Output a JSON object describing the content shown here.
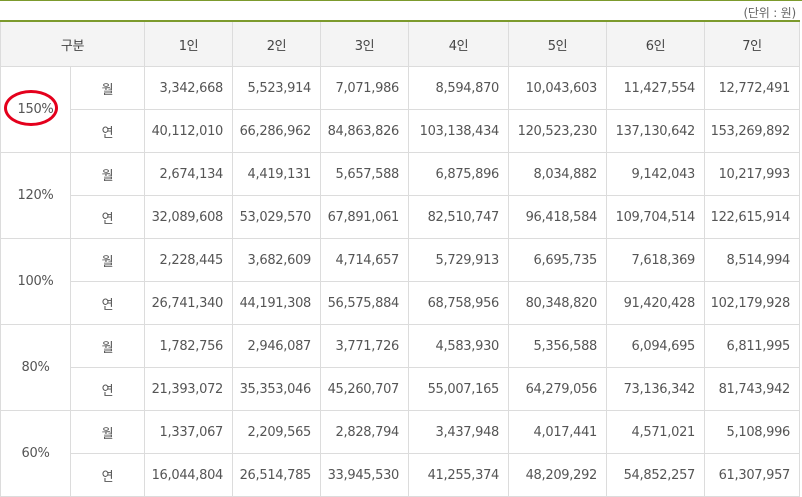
{
  "unit_label": "(단위 : 원)",
  "header": [
    "구분",
    "1인",
    "2인",
    "3인",
    "4인",
    "5인",
    "6인",
    "7인"
  ],
  "groups": [
    {
      "pct": "150%",
      "rows": [
        {
          "kind": "월",
          "values": [
            "3,342,668",
            "5,523,914",
            "7,071,986",
            "8,594,870",
            "10,043,603",
            "11,427,554",
            "12,772,491"
          ]
        },
        {
          "kind": "연",
          "values": [
            "40,112,010",
            "66,286,962",
            "84,863,826",
            "103,138,434",
            "120,523,230",
            "137,130,642",
            "153,269,892"
          ]
        }
      ]
    },
    {
      "pct": "120%",
      "rows": [
        {
          "kind": "월",
          "values": [
            "2,674,134",
            "4,419,131",
            "5,657,588",
            "6,875,896",
            "8,034,882",
            "9,142,043",
            "10,217,993"
          ]
        },
        {
          "kind": "연",
          "values": [
            "32,089,608",
            "53,029,570",
            "67,891,061",
            "82,510,747",
            "96,418,584",
            "109,704,514",
            "122,615,914"
          ]
        }
      ]
    },
    {
      "pct": "100%",
      "rows": [
        {
          "kind": "월",
          "values": [
            "2,228,445",
            "3,682,609",
            "4,714,657",
            "5,729,913",
            "6,695,735",
            "7,618,369",
            "8,514,994"
          ]
        },
        {
          "kind": "연",
          "values": [
            "26,741,340",
            "44,191,308",
            "56,575,884",
            "68,758,956",
            "80,348,820",
            "91,420,428",
            "102,179,928"
          ]
        }
      ]
    },
    {
      "pct": "80%",
      "rows": [
        {
          "kind": "월",
          "values": [
            "1,782,756",
            "2,946,087",
            "3,771,726",
            "4,583,930",
            "5,356,588",
            "6,094,695",
            "6,811,995"
          ]
        },
        {
          "kind": "연",
          "values": [
            "21,393,072",
            "35,353,046",
            "45,260,707",
            "55,007,165",
            "64,279,056",
            "73,136,342",
            "81,743,942"
          ]
        }
      ]
    },
    {
      "pct": "60%",
      "rows": [
        {
          "kind": "월",
          "values": [
            "1,337,067",
            "2,209,565",
            "2,828,794",
            "3,437,948",
            "4,017,441",
            "4,571,021",
            "5,108,996"
          ]
        },
        {
          "kind": "연",
          "values": [
            "16,044,804",
            "26,514,785",
            "33,945,530",
            "41,255,374",
            "48,209,292",
            "54,852,257",
            "61,307,957"
          ]
        }
      ]
    }
  ],
  "highlight": {
    "group_index": 0,
    "color": "#e4001c"
  },
  "colors": {
    "accent_line": "#7c9a2d",
    "header_bg": "#f4f4f4",
    "border": "#dcdcdc"
  }
}
